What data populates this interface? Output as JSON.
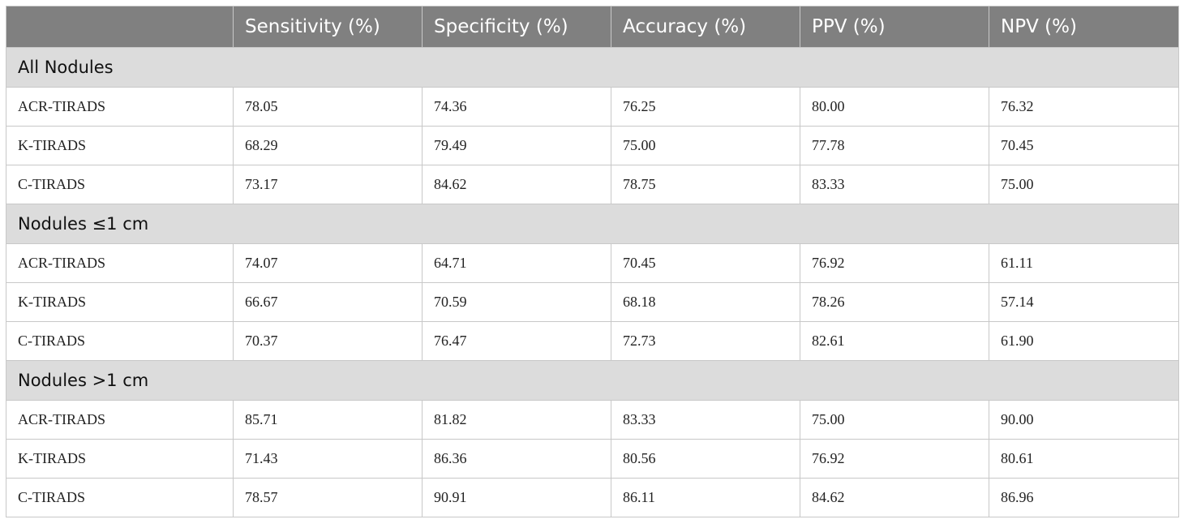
{
  "table": {
    "columns": [
      "",
      "Sensitivity (%)",
      "Specificity (%)",
      "Accuracy (%)",
      "PPV (%)",
      "NPV (%)"
    ],
    "groups": [
      {
        "label": "All Nodules",
        "rows": [
          {
            "method": "ACR-TIRADS",
            "values": [
              "78.05",
              "74.36",
              "76.25",
              "80.00",
              "76.32"
            ]
          },
          {
            "method": "K-TIRADS",
            "values": [
              "68.29",
              "79.49",
              "75.00",
              "77.78",
              "70.45"
            ]
          },
          {
            "method": "C-TIRADS",
            "values": [
              "73.17",
              "84.62",
              "78.75",
              "83.33",
              "75.00"
            ]
          }
        ]
      },
      {
        "label": "Nodules ≤1 cm",
        "rows": [
          {
            "method": "ACR-TIRADS",
            "values": [
              "74.07",
              "64.71",
              "70.45",
              "76.92",
              "61.11"
            ]
          },
          {
            "method": "K-TIRADS",
            "values": [
              "66.67",
              "70.59",
              "68.18",
              "78.26",
              "57.14"
            ]
          },
          {
            "method": "C-TIRADS",
            "values": [
              "70.37",
              "76.47",
              "72.73",
              "82.61",
              "61.90"
            ]
          }
        ]
      },
      {
        "label": "Nodules >1 cm",
        "rows": [
          {
            "method": "ACR-TIRADS",
            "values": [
              "85.71",
              "81.82",
              "83.33",
              "75.00",
              "90.00"
            ]
          },
          {
            "method": "K-TIRADS",
            "values": [
              "71.43",
              "86.36",
              "80.56",
              "76.92",
              "80.61"
            ]
          },
          {
            "method": "C-TIRADS",
            "values": [
              "78.57",
              "90.91",
              "86.11",
              "84.62",
              "86.96"
            ]
          }
        ]
      }
    ]
  }
}
